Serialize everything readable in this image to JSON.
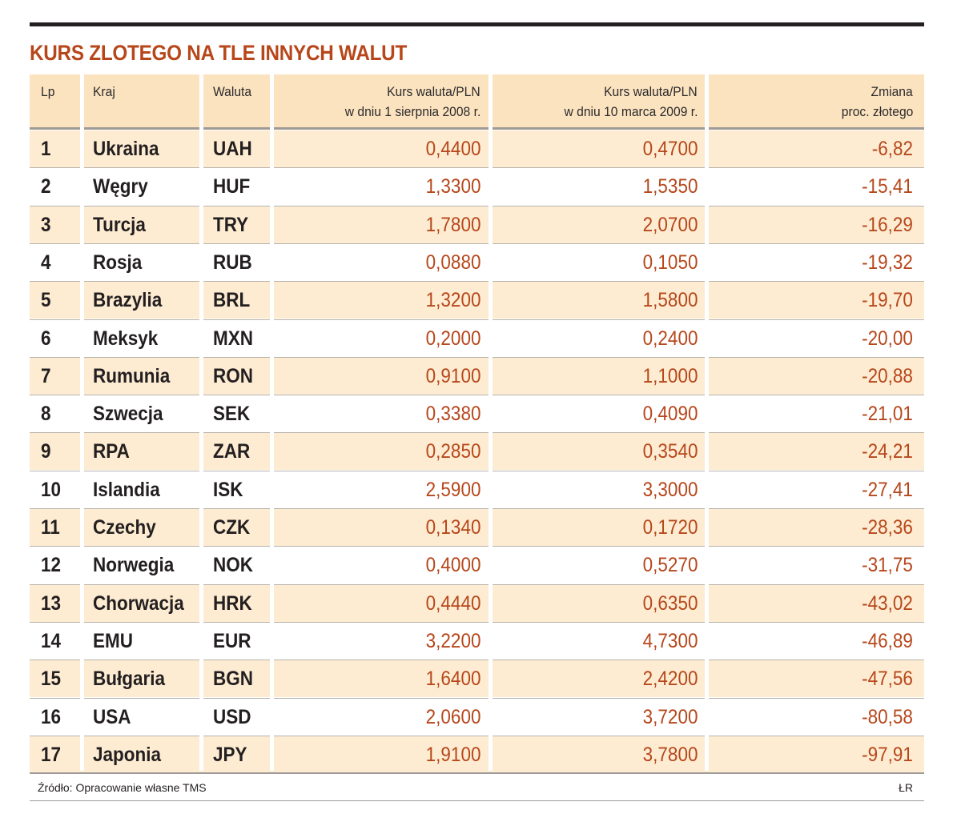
{
  "title": "KURS ZLOTEGO NA TLE INNYCH WALUT",
  "columns": {
    "lp": "Lp",
    "kraj": "Kraj",
    "waluta": "Waluta",
    "kurs1_line1": "Kurs waluta/PLN",
    "kurs1_line2": "w dniu 1 sierpnia 2008 r.",
    "kurs2_line1": "Kurs waluta/PLN",
    "kurs2_line2": "w dniu 10 marca 2009 r.",
    "zmiana_line1": "Zmiana",
    "zmiana_line2": "proc. złotego"
  },
  "footer": {
    "source": "Źródło: Opracowanie własne TMS",
    "author": "ŁR"
  },
  "colors": {
    "title": "#b7471b",
    "values": "#b7471b",
    "header_bg": "#fce3c0",
    "band": "#fdecd2",
    "rule": "#231f20"
  },
  "chart_data": {
    "type": "table",
    "title": "KURS ZLOTEGO NA TLE INNYCH WALUT",
    "headers": [
      "Lp",
      "Kraj",
      "Waluta",
      "Kurs waluta/PLN w dniu 1 sierpnia 2008 r.",
      "Kurs waluta/PLN w dniu 10 marca 2009 r.",
      "Zmiana proc. złotego"
    ],
    "rows": [
      [
        "1",
        "Ukraina",
        "UAH",
        "0,4400",
        "0,4700",
        "-6,82"
      ],
      [
        "2",
        "Węgry",
        "HUF",
        "1,3300",
        "1,5350",
        "-15,41"
      ],
      [
        "3",
        "Turcja",
        "TRY",
        "1,7800",
        "2,0700",
        "-16,29"
      ],
      [
        "4",
        "Rosja",
        "RUB",
        "0,0880",
        "0,1050",
        "-19,32"
      ],
      [
        "5",
        "Brazylia",
        "BRL",
        "1,3200",
        "1,5800",
        "-19,70"
      ],
      [
        "6",
        "Meksyk",
        "MXN",
        "0,2000",
        "0,2400",
        "-20,00"
      ],
      [
        "7",
        "Rumunia",
        "RON",
        "0,9100",
        "1,1000",
        "-20,88"
      ],
      [
        "8",
        "Szwecja",
        "SEK",
        "0,3380",
        "0,4090",
        "-21,01"
      ],
      [
        "9",
        "RPA",
        "ZAR",
        "0,2850",
        "0,3540",
        "-24,21"
      ],
      [
        "10",
        "Islandia",
        "ISK",
        "2,5900",
        "3,3000",
        "-27,41"
      ],
      [
        "11",
        "Czechy",
        "CZK",
        "0,1340",
        "0,1720",
        "-28,36"
      ],
      [
        "12",
        "Norwegia",
        "NOK",
        "0,4000",
        "0,5270",
        "-31,75"
      ],
      [
        "13",
        "Chorwacja",
        "HRK",
        "0,4440",
        "0,6350",
        "-43,02"
      ],
      [
        "14",
        "EMU",
        "EUR",
        "3,2200",
        "4,7300",
        "-46,89"
      ],
      [
        "15",
        "Bułgaria",
        "BGN",
        "1,6400",
        "2,4200",
        "-47,56"
      ],
      [
        "16",
        "USA",
        "USD",
        "2,0600",
        "3,7200",
        "-80,58"
      ],
      [
        "17",
        "Japonia",
        "JPY",
        "1,9100",
        "3,7800",
        "-97,91"
      ]
    ]
  }
}
